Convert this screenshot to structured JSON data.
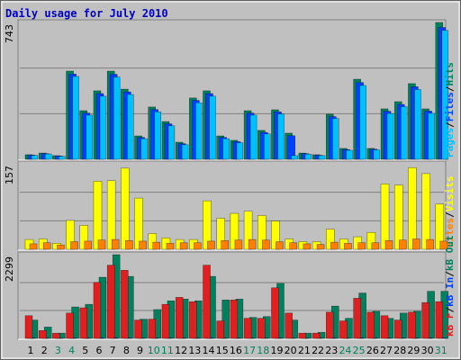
{
  "chart_data": [
    {
      "type": "bar",
      "title": "Daily usage for July 2010",
      "ylim": [
        0,
        743
      ],
      "yticks": [
        743
      ],
      "legend_separator": "/",
      "series": [
        {
          "name": "Pages",
          "color": "#00c0ff",
          "values": [
            21,
            29,
            16,
            450,
            240,
            343,
            447,
            352,
            112,
            258,
            182,
            79,
            307,
            343,
            112,
            90,
            240,
            138,
            246,
            20,
            28,
            20,
            222,
            49,
            401,
            51,
            249,
            286,
            379,
            250,
            700
          ]
        },
        {
          "name": "Files",
          "color": "#0040ff",
          "values": [
            23,
            31,
            18,
            463,
            251,
            357,
            462,
            366,
            119,
            270,
            193,
            85,
            320,
            357,
            119,
            96,
            251,
            146,
            258,
            128,
            31,
            22,
            232,
            53,
            417,
            55,
            261,
            298,
            394,
            262,
            716
          ]
        },
        {
          "name": "Hits",
          "color": "#00805c",
          "values": [
            25,
            34,
            20,
            479,
            264,
            372,
            479,
            381,
            127,
            284,
            205,
            93,
            333,
            372,
            127,
            103,
            264,
            157,
            269,
            142,
            34,
            25,
            245,
            59,
            435,
            59,
            274,
            313,
            411,
            274,
            743
          ]
        }
      ]
    },
    {
      "type": "bar",
      "ylim": [
        0,
        157
      ],
      "yticks": [
        157
      ],
      "legend_separator": "/",
      "series": [
        {
          "name": "Sites",
          "color": "#ff8000",
          "values": [
            10,
            12,
            8,
            14,
            15,
            17,
            18,
            16,
            15,
            13,
            11,
            12,
            12,
            15,
            16,
            17,
            18,
            17,
            14,
            12,
            10,
            9,
            13,
            11,
            12,
            12,
            16,
            17,
            19,
            18,
            15
          ]
        },
        {
          "name": "Visits",
          "color": "#ffff00",
          "values": [
            18,
            19,
            11,
            53,
            44,
            125,
            126,
            149,
            94,
            29,
            21,
            18,
            18,
            89,
            57,
            66,
            70,
            62,
            52,
            19,
            14,
            14,
            37,
            19,
            23,
            31,
            120,
            118,
            150,
            139,
            83
          ]
        }
      ]
    },
    {
      "type": "bar",
      "ylim": [
        0,
        2299
      ],
      "yticks": [
        2299
      ],
      "legend_separator": "/",
      "categories": [
        "1",
        "2",
        "3",
        "4",
        "5",
        "6",
        "7",
        "8",
        "9",
        "10",
        "11",
        "12",
        "13",
        "14",
        "15",
        "16",
        "17",
        "18",
        "19",
        "20",
        "21",
        "22",
        "23",
        "24",
        "25",
        "26",
        "27",
        "28",
        "29",
        "30",
        "31"
      ],
      "category_colors": [
        "#000000",
        "#000000",
        "#00805c",
        "#00805c",
        "#000000",
        "#000000",
        "#000000",
        "#000000",
        "#000000",
        "#00805c",
        "#00805c",
        "#000000",
        "#000000",
        "#000000",
        "#000000",
        "#000000",
        "#00805c",
        "#00805c",
        "#000000",
        "#000000",
        "#000000",
        "#000000",
        "#000000",
        "#00805c",
        "#00805c",
        "#000000",
        "#000000",
        "#000000",
        "#000000",
        "#000000",
        "#00805c"
      ],
      "series": [
        {
          "name": "kB F",
          "color": "#e02020",
          "values": [
            624,
            216,
            144,
            696,
            840,
            1536,
            2011,
            1871,
            504,
            528,
            936,
            1128,
            1008,
            2011,
            480,
            1056,
            552,
            552,
            1390,
            696,
            144,
            144,
            720,
            480,
            1103,
            720,
            624,
            504,
            720,
            984,
            1008
          ]
        },
        {
          "name": "kB In",
          "color": "#0040ff",
          "values": [
            12,
            10,
            8,
            15,
            14,
            18,
            20,
            19,
            11,
            13,
            14,
            13,
            15,
            21,
            12,
            14,
            11,
            12,
            16,
            12,
            8,
            8,
            14,
            10,
            16,
            12,
            13,
            12,
            15,
            17,
            16
          ]
        },
        {
          "name": "kB Out",
          "color": "#00805c",
          "values": [
            504,
            312,
            144,
            864,
            936,
            1680,
            2299,
            1703,
            528,
            792,
            1032,
            1080,
            1032,
            1703,
            1056,
            1080,
            576,
            600,
            1510,
            504,
            144,
            168,
            887,
            552,
            1246,
            744,
            552,
            696,
            744,
            1294,
            1294
          ]
        }
      ]
    }
  ]
}
